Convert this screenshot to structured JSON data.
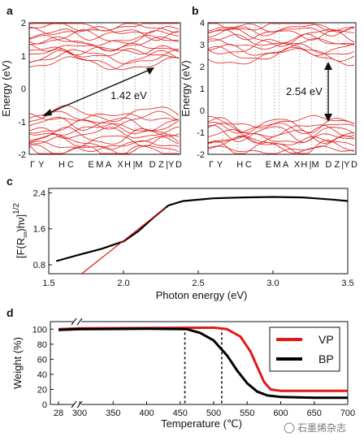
{
  "panels": {
    "a": {
      "letter": "a",
      "ylabel": "Energy (eV)",
      "ylim": [
        -2,
        2
      ],
      "yticks": [
        "2",
        "1",
        "0",
        "-1",
        "-2"
      ],
      "kpoints": [
        "Γ",
        "Y",
        "H",
        "C",
        "E",
        "M",
        "A",
        "X",
        "H",
        "|M",
        "D",
        "Z",
        "|Y",
        "D"
      ],
      "gap_label": "1.42 eV",
      "band_color": "#e01a1a"
    },
    "b": {
      "letter": "b",
      "ylabel": "Energy (eV)",
      "ylim": [
        -2,
        4
      ],
      "yticks": [
        "4",
        "3",
        "2",
        "1",
        "0",
        "-1",
        "-2"
      ],
      "kpoints": [
        "Γ",
        "Y",
        "H",
        "C",
        "E",
        "M",
        "A",
        "X",
        "H",
        "|M",
        "D",
        "Z",
        "|Y",
        "D"
      ],
      "gap_label": "2.54 eV",
      "band_color": "#e01a1a"
    },
    "c": {
      "letter": "c",
      "ylabel_main": "[F(R",
      "ylabel_sub": "∞",
      "ylabel_end": ")hν]",
      "ylabel_sup": "1/2",
      "xlabel": "Photon energy (eV)",
      "xticks": [
        "1.5",
        "2.0",
        "2.5",
        "3.0",
        "3.5"
      ],
      "yticks": [
        "2.4",
        "1.6",
        "0.8"
      ]
    },
    "d": {
      "letter": "d",
      "ylabel": "Weight (%)",
      "xlabel": "Temperature (℃)",
      "xticks": [
        "28",
        "300",
        "350",
        "400",
        "450",
        "500",
        "550",
        "600",
        "650",
        "700"
      ],
      "yticks": [
        "100",
        "80",
        "60",
        "40",
        "20",
        "0"
      ],
      "legend": [
        {
          "label": "VP",
          "color": "#e01a1a"
        },
        {
          "label": "BP",
          "color": "#000000"
        }
      ]
    }
  },
  "watermark": "石墨烯杂志",
  "chart_data": [
    {
      "type": "line",
      "panel": "c",
      "xlabel": "Photon energy (eV)",
      "ylabel": "[F(R∞)hν]^1/2",
      "xlim": [
        1.5,
        3.5
      ],
      "ylim": [
        0.6,
        2.5
      ],
      "series": [
        {
          "color": "#000000",
          "x": [
            1.55,
            1.7,
            1.85,
            2.0,
            2.1,
            2.2,
            2.3,
            2.4,
            2.6,
            2.8,
            3.0,
            3.2,
            3.4,
            3.5
          ],
          "y": [
            0.88,
            1.02,
            1.15,
            1.32,
            1.55,
            1.85,
            2.12,
            2.22,
            2.28,
            2.3,
            2.31,
            2.3,
            2.25,
            2.22
          ]
        },
        {
          "color": "#e01a1a",
          "x": [
            1.72,
            2.28
          ],
          "y": [
            0.6,
            2.07
          ]
        }
      ]
    },
    {
      "type": "line",
      "panel": "d",
      "xlabel": "Temperature (℃)",
      "ylabel": "Weight (%)",
      "ylim": [
        0,
        110
      ],
      "series": [
        {
          "name": "VP",
          "color": "#e01a1a",
          "x": [
            28,
            300,
            400,
            500,
            520,
            540,
            555,
            565,
            575,
            585,
            600,
            650,
            700
          ],
          "y": [
            100,
            101,
            101.5,
            102,
            100,
            90,
            70,
            50,
            30,
            20,
            18,
            18,
            18
          ]
        },
        {
          "name": "BP",
          "color": "#000000",
          "x": [
            28,
            300,
            400,
            460,
            480,
            500,
            520,
            535,
            550,
            565,
            580,
            600,
            650,
            700
          ],
          "y": [
            99,
            100,
            100.5,
            100,
            95,
            85,
            65,
            45,
            28,
            17,
            12,
            10,
            9,
            9
          ]
        }
      ],
      "markers_x": [
        457,
        512
      ]
    }
  ]
}
